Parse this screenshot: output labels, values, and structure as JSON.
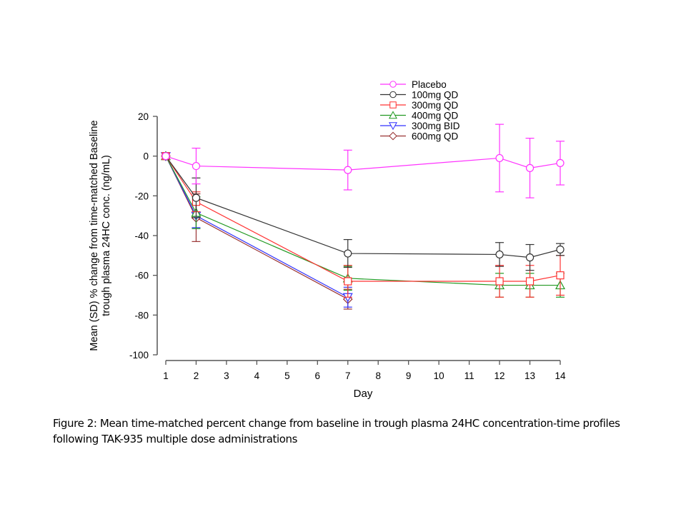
{
  "caption": {
    "line1": "Figure 2: Mean time-matched percent change from baseline in trough plasma 24HC concentration-time profiles",
    "line2": " following TAK-935 multiple dose administrations"
  },
  "chart_data": {
    "type": "line",
    "title": "",
    "xlabel": "Day",
    "ylabel_lines": [
      "Mean (SD) % change from time-matched Baseline",
      "trough plasma 24HC conc. (ng/mL)"
    ],
    "xlim": [
      1,
      14
    ],
    "ylim": [
      -100,
      20
    ],
    "x_ticks": [
      1,
      2,
      3,
      4,
      5,
      6,
      7,
      8,
      9,
      10,
      11,
      12,
      13,
      14
    ],
    "y_ticks": [
      20,
      0,
      -20,
      -40,
      -60,
      -80,
      -100
    ],
    "grid": false,
    "legend_position": "top-right",
    "series": [
      {
        "name": "Placebo",
        "color": "#ff33ff",
        "marker": "circle",
        "x": [
          1,
          2,
          7,
          12,
          13,
          14
        ],
        "y": [
          0,
          -5,
          -7,
          -1,
          -6,
          -3.5
        ],
        "sd": [
          0,
          9,
          10,
          17,
          15,
          11
        ]
      },
      {
        "name": "100mg QD",
        "color": "#333333",
        "marker": "circle",
        "x": [
          1,
          2,
          7,
          12,
          13,
          14
        ],
        "y": [
          0,
          -21,
          -49,
          -49.5,
          -51,
          -47
        ],
        "sd": [
          0,
          10,
          7,
          6,
          6.5,
          3
        ]
      },
      {
        "name": "300mg QD",
        "color": "#ff3333",
        "marker": "square",
        "x": [
          1,
          2,
          7,
          12,
          13,
          14
        ],
        "y": [
          0,
          -23,
          -63,
          -63,
          -63,
          -60
        ],
        "sd": [
          0,
          5,
          8,
          8,
          8,
          10
        ]
      },
      {
        "name": "400mg QD",
        "color": "#229922",
        "marker": "triangle-up",
        "x": [
          1,
          2,
          7,
          12,
          13,
          14
        ],
        "y": [
          0,
          -28.5,
          -61.5,
          -65,
          -65,
          -65
        ],
        "sd": [
          0,
          8,
          6,
          6,
          6,
          6
        ]
      },
      {
        "name": "300mg BID",
        "color": "#3333ff",
        "marker": "triangle-down",
        "x": [
          1,
          2,
          7
        ],
        "y": [
          0,
          -30,
          -71
        ],
        "sd": [
          0,
          6,
          5
        ]
      },
      {
        "name": "600mg QD",
        "color": "#993333",
        "marker": "diamond",
        "x": [
          1,
          2,
          7
        ],
        "y": [
          0,
          -31,
          -72
        ],
        "sd": [
          0,
          12,
          5
        ]
      }
    ]
  }
}
